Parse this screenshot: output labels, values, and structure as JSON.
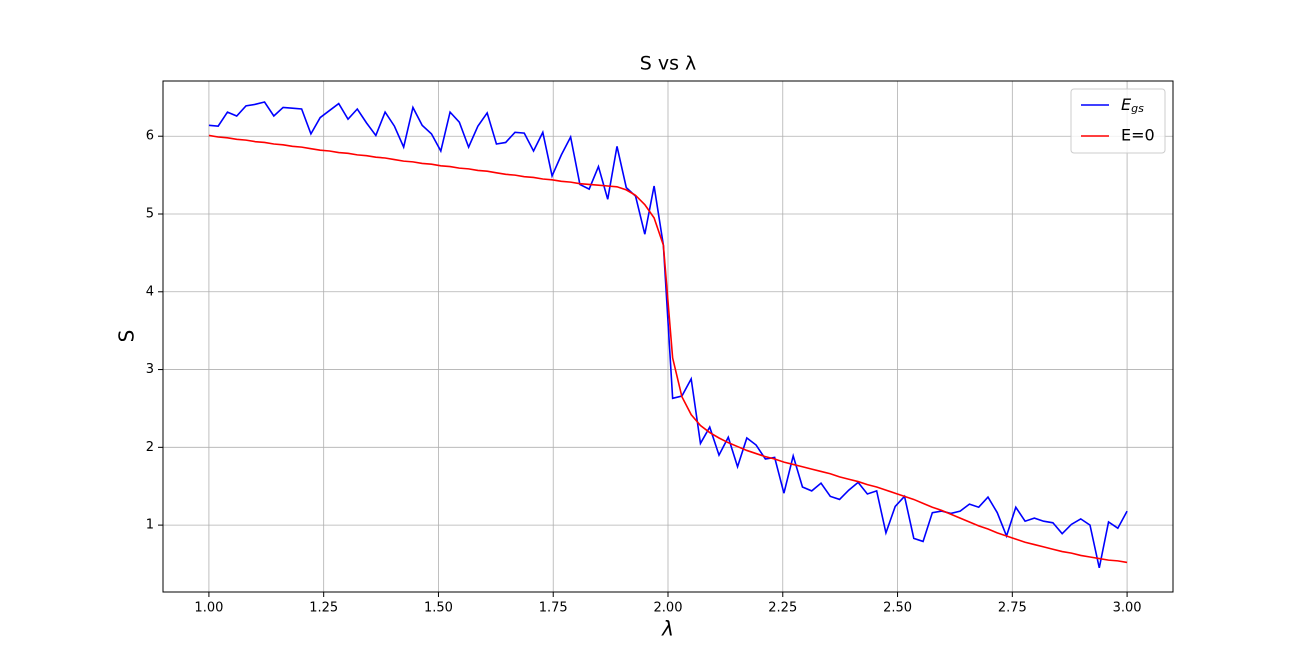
{
  "chart_data": {
    "type": "line",
    "title": "S vs λ",
    "x_label": "λ",
    "y_label": "S",
    "x": [
      1.0,
      1.0202,
      1.0404,
      1.0606,
      1.0808,
      1.101,
      1.1212,
      1.1414,
      1.1616,
      1.1818,
      1.202,
      1.2222,
      1.2424,
      1.2626,
      1.2828,
      1.303,
      1.3232,
      1.3434,
      1.3636,
      1.3838,
      1.404,
      1.4242,
      1.4444,
      1.4646,
      1.4848,
      1.5051,
      1.5253,
      1.5455,
      1.5657,
      1.5859,
      1.6061,
      1.6263,
      1.6465,
      1.6667,
      1.6869,
      1.7071,
      1.7273,
      1.7475,
      1.7677,
      1.7879,
      1.8081,
      1.8283,
      1.8485,
      1.8687,
      1.8889,
      1.9091,
      1.9293,
      1.9495,
      1.9697,
      1.9899,
      2.0101,
      2.0303,
      2.0505,
      2.0707,
      2.0909,
      2.1111,
      2.1313,
      2.1515,
      2.1717,
      2.1919,
      2.2121,
      2.2323,
      2.2525,
      2.2727,
      2.2929,
      2.3131,
      2.3333,
      2.3535,
      2.3737,
      2.3939,
      2.4141,
      2.4343,
      2.4545,
      2.4747,
      2.4949,
      2.5152,
      2.5354,
      2.5556,
      2.5758,
      2.596,
      2.6162,
      2.6364,
      2.6566,
      2.6768,
      2.697,
      2.7172,
      2.7374,
      2.7576,
      2.7778,
      2.798,
      2.8182,
      2.8384,
      2.8586,
      2.8788,
      2.899,
      2.9192,
      2.9394,
      2.9596,
      2.9798,
      3.0
    ],
    "series": [
      {
        "name": "E_gs",
        "color": "#0000ff",
        "values": [
          6.14,
          6.13,
          6.31,
          6.26,
          6.39,
          6.41,
          6.44,
          6.26,
          6.37,
          6.36,
          6.35,
          6.03,
          6.24,
          6.33,
          6.42,
          6.22,
          6.35,
          6.17,
          6.01,
          6.31,
          6.13,
          5.86,
          6.37,
          6.14,
          6.03,
          5.81,
          6.31,
          6.18,
          5.86,
          6.13,
          6.3,
          5.9,
          5.92,
          6.05,
          6.04,
          5.81,
          6.05,
          5.49,
          5.76,
          5.99,
          5.38,
          5.32,
          5.61,
          5.19,
          5.87,
          5.34,
          5.23,
          4.74,
          5.36,
          4.6,
          2.63,
          2.66,
          2.88,
          2.05,
          2.26,
          1.9,
          2.13,
          1.75,
          2.12,
          2.03,
          1.85,
          1.87,
          1.41,
          1.89,
          1.49,
          1.44,
          1.54,
          1.37,
          1.33,
          1.45,
          1.55,
          1.4,
          1.44,
          0.9,
          1.24,
          1.37,
          0.83,
          0.79,
          1.16,
          1.18,
          1.15,
          1.18,
          1.27,
          1.23,
          1.36,
          1.16,
          0.86,
          1.23,
          1.05,
          1.09,
          1.05,
          1.03,
          0.89,
          1.01,
          1.08,
          1.0,
          0.45,
          1.04,
          0.96,
          1.18
        ]
      },
      {
        "name": "E=0",
        "color": "#ff0000",
        "values": [
          6.01,
          5.99,
          5.98,
          5.96,
          5.95,
          5.93,
          5.92,
          5.9,
          5.89,
          5.87,
          5.86,
          5.84,
          5.82,
          5.81,
          5.79,
          5.78,
          5.76,
          5.75,
          5.73,
          5.72,
          5.7,
          5.68,
          5.67,
          5.65,
          5.64,
          5.62,
          5.61,
          5.59,
          5.58,
          5.56,
          5.55,
          5.53,
          5.51,
          5.5,
          5.48,
          5.47,
          5.45,
          5.44,
          5.42,
          5.41,
          5.39,
          5.38,
          5.37,
          5.36,
          5.35,
          5.31,
          5.24,
          5.12,
          4.95,
          4.6,
          3.15,
          2.65,
          2.42,
          2.28,
          2.19,
          2.12,
          2.06,
          2.01,
          1.96,
          1.92,
          1.88,
          1.85,
          1.81,
          1.78,
          1.75,
          1.72,
          1.69,
          1.66,
          1.62,
          1.59,
          1.56,
          1.52,
          1.49,
          1.45,
          1.41,
          1.37,
          1.33,
          1.28,
          1.23,
          1.19,
          1.14,
          1.09,
          1.04,
          0.99,
          0.95,
          0.9,
          0.86,
          0.82,
          0.78,
          0.75,
          0.72,
          0.69,
          0.66,
          0.64,
          0.61,
          0.59,
          0.57,
          0.55,
          0.54,
          0.52
        ]
      }
    ],
    "xlim": [
      0.9,
      3.1
    ],
    "ylim": [
      0.14,
      6.71
    ],
    "xticks": [
      {
        "value": 1.0,
        "label": "1.00"
      },
      {
        "value": 1.25,
        "label": "1.25"
      },
      {
        "value": 1.5,
        "label": "1.50"
      },
      {
        "value": 1.75,
        "label": "1.75"
      },
      {
        "value": 2.0,
        "label": "2.00"
      },
      {
        "value": 2.25,
        "label": "2.25"
      },
      {
        "value": 2.5,
        "label": "2.50"
      },
      {
        "value": 2.75,
        "label": "2.75"
      },
      {
        "value": 3.0,
        "label": "3.00"
      }
    ],
    "yticks": [
      1,
      2,
      3,
      4,
      5,
      6
    ],
    "grid": true,
    "legend": "upper right"
  }
}
